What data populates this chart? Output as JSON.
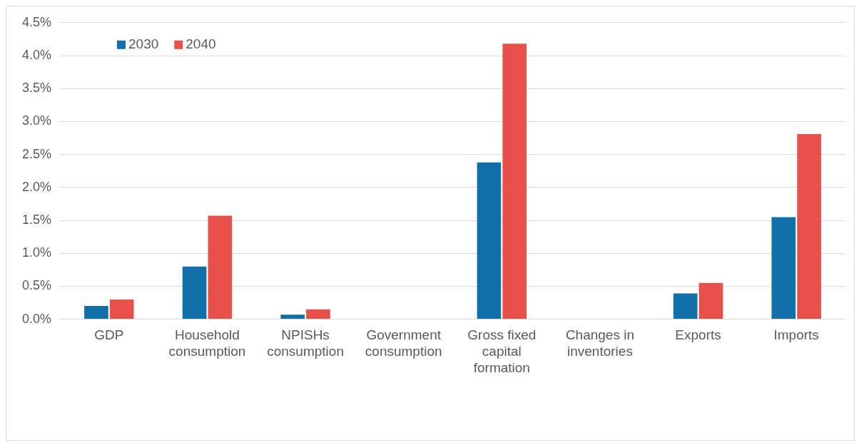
{
  "chart_data": {
    "type": "bar",
    "categories": [
      "GDP",
      "Household consumption",
      "NPISHs consumption",
      "Government consumption",
      "Gross fixed capital formation",
      "Changes in inventories",
      "Exports",
      "Imports"
    ],
    "series": [
      {
        "name": "2030",
        "color": "#1170aa",
        "values": [
          0.2,
          0.8,
          0.07,
          0,
          2.38,
          0,
          0.39,
          1.55
        ]
      },
      {
        "name": "2040",
        "color": "#e8504a",
        "values": [
          0.3,
          1.57,
          0.15,
          0,
          4.18,
          0,
          0.55,
          2.81
        ]
      }
    ],
    "ylim": [
      0,
      4.5
    ],
    "yticks": [
      {
        "value": 0,
        "label": "0.0%"
      },
      {
        "value": 0.5,
        "label": "0.5%"
      },
      {
        "value": 1,
        "label": "1.0%"
      },
      {
        "value": 1.5,
        "label": "1.5%"
      },
      {
        "value": 2,
        "label": "2.0%"
      },
      {
        "value": 2.5,
        "label": "2.5%"
      },
      {
        "value": 3,
        "label": "3.0%"
      },
      {
        "value": 3.5,
        "label": "3.5%"
      },
      {
        "value": 4,
        "label": "4.0%"
      },
      {
        "value": 4.5,
        "label": "4.5%"
      }
    ],
    "grid": "y",
    "legend": "top left"
  }
}
